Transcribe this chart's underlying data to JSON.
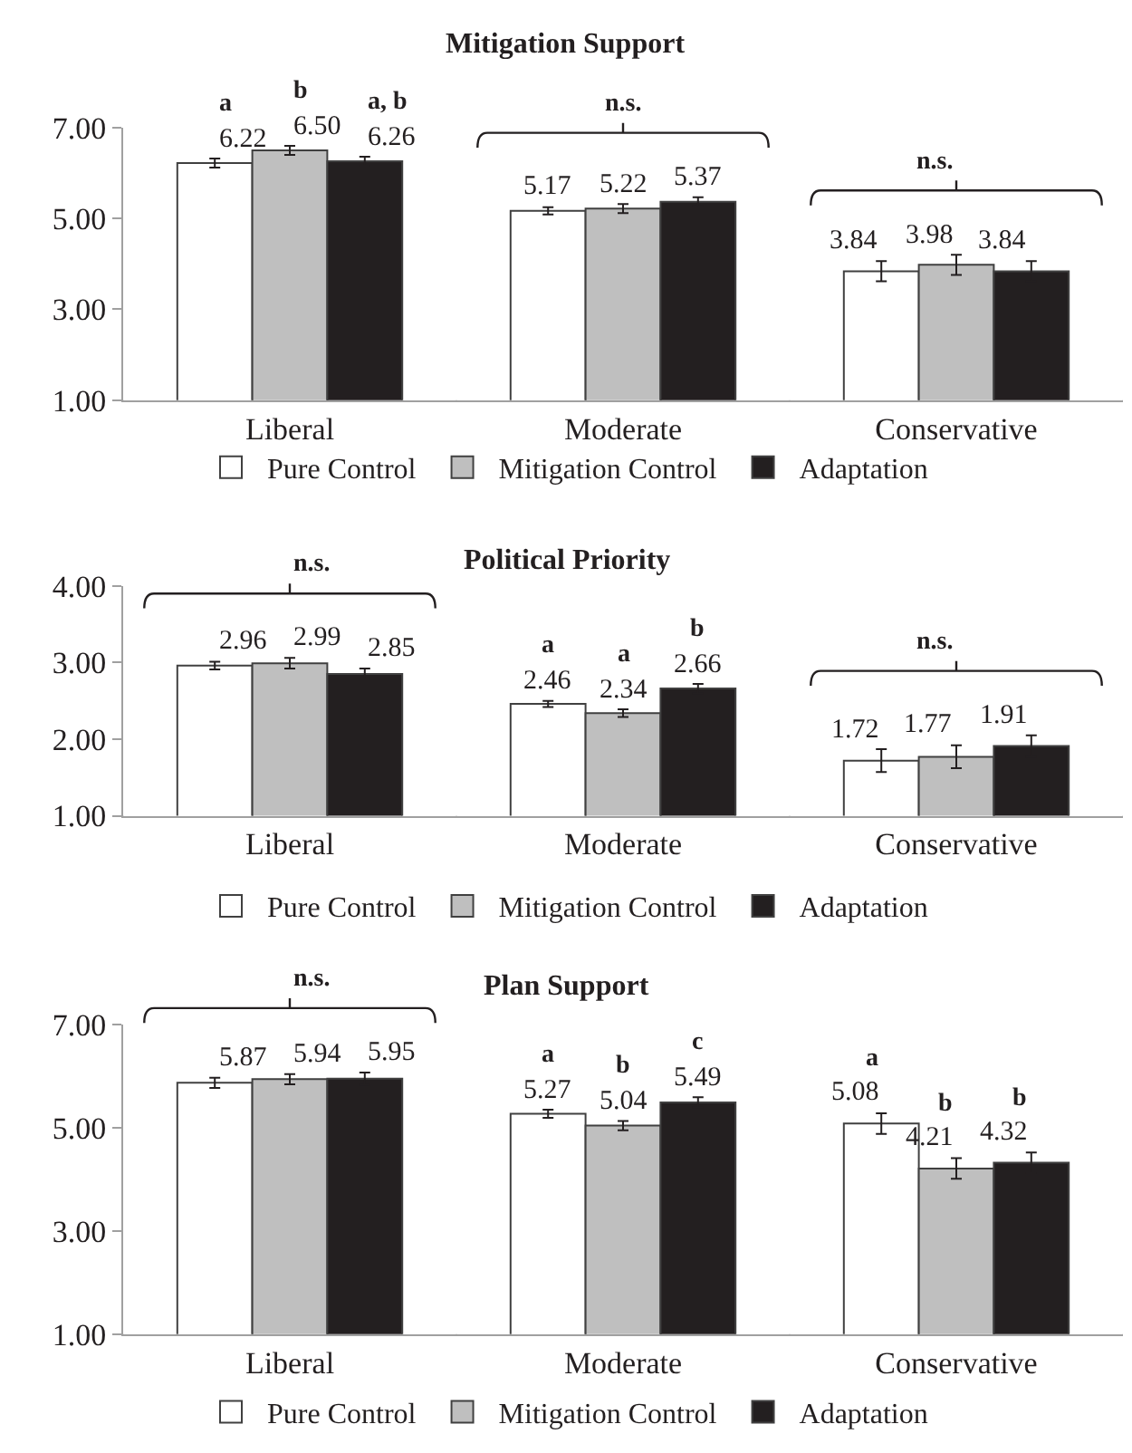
{
  "chart_data": [
    {
      "type": "bar",
      "title": "Mitigation Support",
      "categories": [
        "Liberal",
        "Moderate",
        "Conservative"
      ],
      "ylim": [
        1,
        7
      ],
      "yticks": [
        {
          "value": 1,
          "label": "1.00"
        },
        {
          "value": 3,
          "label": "3.00"
        },
        {
          "value": 5,
          "label": "5.00"
        },
        {
          "value": 7,
          "label": "7.00"
        }
      ],
      "grid": false,
      "legend": "bottom",
      "series": [
        {
          "name": "Pure Control",
          "color": "#ffffff",
          "values": [
            6.22,
            5.17,
            3.84
          ],
          "value_labels": [
            "6.22",
            "5.17",
            "3.84"
          ],
          "errors": [
            0.1,
            0.08,
            0.22
          ]
        },
        {
          "name": "Mitigation Control",
          "color": "#bfbfbf",
          "values": [
            6.5,
            5.22,
            3.98
          ],
          "value_labels": [
            "6.50",
            "5.22",
            "3.98"
          ],
          "errors": [
            0.1,
            0.1,
            0.22
          ]
        },
        {
          "name": "Adaptation",
          "color": "#231f20",
          "values": [
            6.26,
            5.37,
            3.84
          ],
          "value_labels": [
            "6.26",
            "5.37",
            "3.84"
          ],
          "errors": [
            0.1,
            0.1,
            0.22
          ]
        }
      ],
      "annotations": [
        "a",
        "b",
        "a, b",
        "n.s.",
        "n.s."
      ]
    },
    {
      "type": "bar",
      "title": "Political Priority",
      "categories": [
        "Liberal",
        "Moderate",
        "Conservative"
      ],
      "ylim": [
        1,
        4
      ],
      "yticks": [
        {
          "value": 1,
          "label": "1.00"
        },
        {
          "value": 2,
          "label": "2.00"
        },
        {
          "value": 3,
          "label": "3.00"
        },
        {
          "value": 4,
          "label": "4.00"
        }
      ],
      "grid": false,
      "legend": "bottom",
      "series": [
        {
          "name": "Pure Control",
          "color": "#ffffff",
          "values": [
            2.96,
            2.46,
            1.72
          ],
          "value_labels": [
            "2.96",
            "2.46",
            "1.72"
          ],
          "errors": [
            0.05,
            0.04,
            0.15
          ]
        },
        {
          "name": "Mitigation Control",
          "color": "#bfbfbf",
          "values": [
            2.99,
            2.34,
            1.77
          ],
          "value_labels": [
            "2.99",
            "2.34",
            "1.77"
          ],
          "errors": [
            0.07,
            0.05,
            0.15
          ]
        },
        {
          "name": "Adaptation",
          "color": "#231f20",
          "values": [
            2.85,
            2.66,
            1.91
          ],
          "value_labels": [
            "2.85",
            "2.66",
            "1.91"
          ],
          "errors": [
            0.07,
            0.06,
            0.14
          ]
        }
      ],
      "annotations": [
        "n.s.",
        "a",
        "a",
        "b",
        "n.s."
      ]
    },
    {
      "type": "bar",
      "title": "Plan Support",
      "categories": [
        "Liberal",
        "Moderate",
        "Conservative"
      ],
      "ylim": [
        1,
        7
      ],
      "yticks": [
        {
          "value": 1,
          "label": "1.00"
        },
        {
          "value": 3,
          "label": "3.00"
        },
        {
          "value": 5,
          "label": "5.00"
        },
        {
          "value": 7,
          "label": "7.00"
        }
      ],
      "grid": false,
      "legend": "bottom",
      "series": [
        {
          "name": "Pure Control",
          "color": "#ffffff",
          "values": [
            5.87,
            5.27,
            5.08
          ],
          "value_labels": [
            "5.87",
            "5.27",
            "5.08"
          ],
          "errors": [
            0.1,
            0.08,
            0.2
          ]
        },
        {
          "name": "Mitigation Control",
          "color": "#bfbfbf",
          "values": [
            5.94,
            5.04,
            4.21
          ],
          "value_labels": [
            "5.94",
            "5.04",
            "4.21"
          ],
          "errors": [
            0.1,
            0.09,
            0.2
          ]
        },
        {
          "name": "Adaptation",
          "color": "#231f20",
          "values": [
            5.95,
            5.49,
            4.32
          ],
          "value_labels": [
            "5.95",
            "5.49",
            "4.32"
          ],
          "errors": [
            0.12,
            0.1,
            0.2
          ]
        }
      ],
      "annotations": [
        "n.s.",
        "a",
        "b",
        "c",
        "a",
        "b",
        "b"
      ]
    }
  ]
}
